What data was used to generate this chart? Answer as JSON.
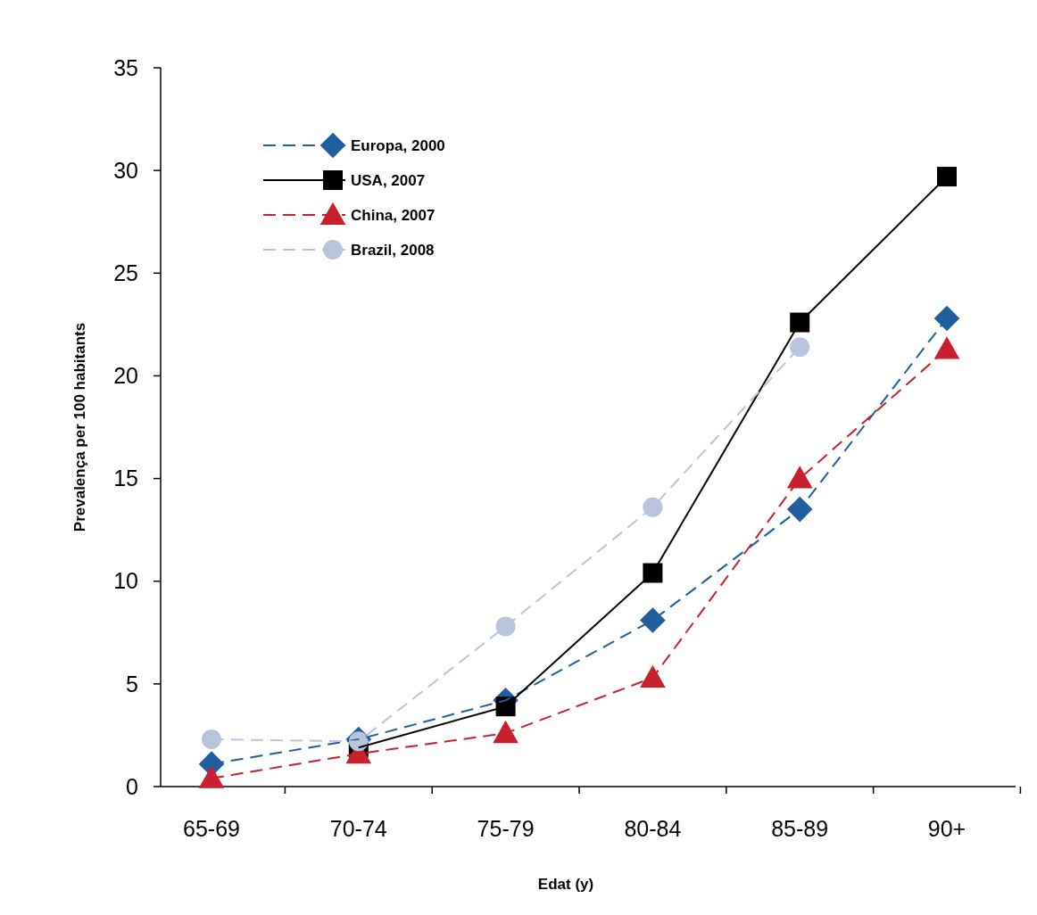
{
  "chart_data": {
    "type": "line",
    "xlabel": "Edat (y)",
    "ylabel": "Prevalença per 100 habitants",
    "categories": [
      "65-69",
      "70-74",
      "75-79",
      "80-84",
      "85-89",
      "90+"
    ],
    "ylim": [
      0,
      35
    ],
    "yticks": [
      0,
      5,
      10,
      15,
      20,
      25,
      30,
      35
    ],
    "grid": false,
    "legend": "top left",
    "series": [
      {
        "name": "Europa, 2000",
        "color": "#1f5fa0",
        "marker": "diamond",
        "line_style": "dashed",
        "values": [
          1.1,
          2.3,
          4.2,
          8.1,
          13.5,
          22.8
        ]
      },
      {
        "name": "USA, 2007",
        "color": "#000000",
        "marker": "square",
        "line_style": "solid",
        "values": [
          null,
          1.9,
          3.9,
          10.4,
          22.6,
          29.7
        ]
      },
      {
        "name": "China, 2007",
        "color": "#c8202f",
        "marker": "triangle",
        "line_style": "dashed",
        "values": [
          0.4,
          1.6,
          2.6,
          5.3,
          15.0,
          21.3
        ]
      },
      {
        "name": "Brazil, 2008",
        "color": "#b8c4dc",
        "marker": "circle",
        "line_style": "dashed",
        "values": [
          2.3,
          2.2,
          7.8,
          13.6,
          21.4,
          null
        ]
      }
    ]
  }
}
